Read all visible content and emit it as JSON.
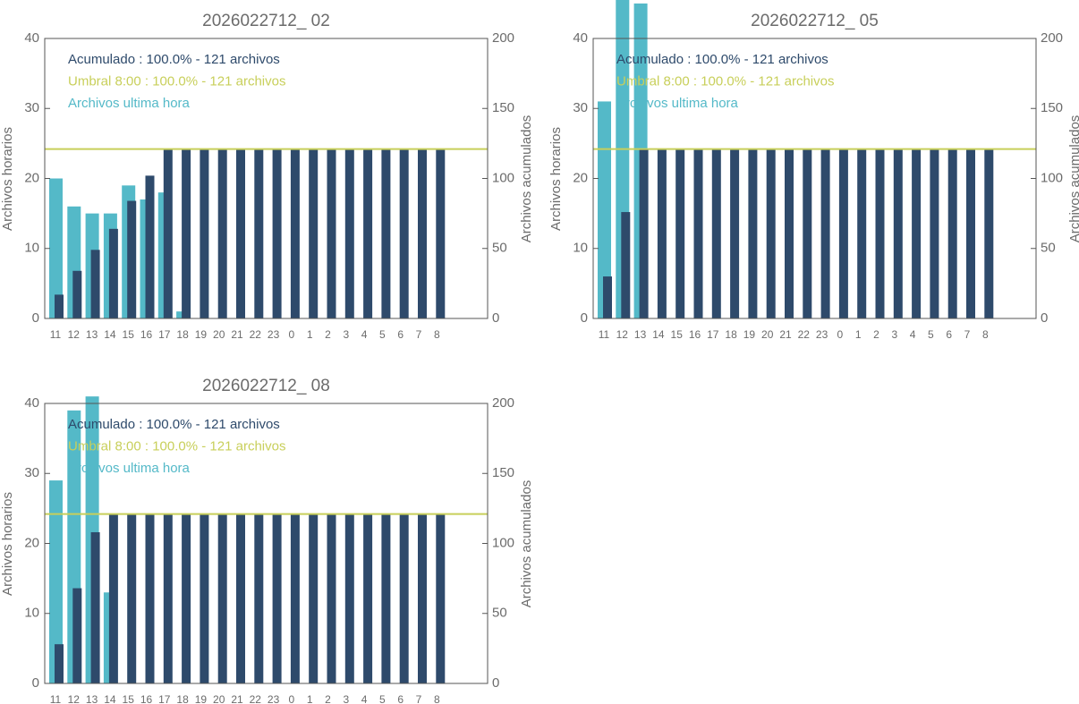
{
  "chart_data": [
    {
      "type": "bar",
      "title": "2026022712_ 02",
      "categories": [
        "11",
        "12",
        "13",
        "14",
        "15",
        "16",
        "17",
        "18",
        "19",
        "20",
        "21",
        "22",
        "23",
        "0",
        "1",
        "2",
        "3",
        "4",
        "5",
        "6",
        "7",
        "8"
      ],
      "series": [
        {
          "name": "Archivos ultima hora",
          "color": "#54b9c8",
          "values": [
            20,
            16,
            15,
            15,
            19,
            17,
            18,
            1,
            0,
            0,
            0,
            0,
            0,
            0,
            0,
            0,
            0,
            0,
            0,
            0,
            0,
            0
          ]
        },
        {
          "name": "Acumulado : 100.0% - 121 archivos",
          "color": "#2e4a6b",
          "axis": "y2",
          "values": [
            17,
            34,
            49,
            64,
            84,
            102,
            121,
            121,
            121,
            121,
            121,
            121,
            121,
            121,
            121,
            121,
            121,
            121,
            121,
            121,
            121,
            121
          ]
        }
      ],
      "threshold": {
        "name": "Umbral 8:00 : 100.0% - 121 archivos",
        "value": 121,
        "axis": "y2",
        "color": "#c8cf5a"
      },
      "ylabel": "Archivos horarios",
      "y2label": "Archivos acumulados",
      "ylim": [
        0,
        40
      ],
      "yticks": [
        0,
        10,
        20,
        30,
        40
      ],
      "y2lim": [
        0,
        200
      ],
      "y2ticks": [
        0,
        50,
        100,
        150,
        200
      ]
    },
    {
      "type": "bar",
      "title": "2026022712_ 05",
      "categories": [
        "11",
        "12",
        "13",
        "14",
        "15",
        "16",
        "17",
        "18",
        "19",
        "20",
        "21",
        "22",
        "23",
        "0",
        "1",
        "2",
        "3",
        "4",
        "5",
        "6",
        "7",
        "8"
      ],
      "series": [
        {
          "name": "Archivos ultima hora",
          "color": "#54b9c8",
          "values": [
            31,
            46,
            45,
            0,
            0,
            0,
            0,
            0,
            0,
            0,
            0,
            0,
            0,
            0,
            0,
            0,
            0,
            0,
            0,
            0,
            0,
            0
          ]
        },
        {
          "name": "Acumulado : 100.0% - 121 archivos",
          "color": "#2e4a6b",
          "axis": "y2",
          "values": [
            30,
            76,
            121,
            121,
            121,
            121,
            121,
            121,
            121,
            121,
            121,
            121,
            121,
            121,
            121,
            121,
            121,
            121,
            121,
            121,
            121,
            121
          ]
        }
      ],
      "threshold": {
        "name": "Umbral 8:00 : 100.0% - 121 archivos",
        "value": 121,
        "axis": "y2",
        "color": "#c8cf5a"
      },
      "ylabel": "Archivos horarios",
      "y2label": "Archivos acumulados",
      "ylim": [
        0,
        40
      ],
      "yticks": [
        0,
        10,
        20,
        30,
        40
      ],
      "y2lim": [
        0,
        200
      ],
      "y2ticks": [
        0,
        50,
        100,
        150,
        200
      ]
    },
    {
      "type": "bar",
      "title": "2026022712_ 08",
      "categories": [
        "11",
        "12",
        "13",
        "14",
        "15",
        "16",
        "17",
        "18",
        "19",
        "20",
        "21",
        "22",
        "23",
        "0",
        "1",
        "2",
        "3",
        "4",
        "5",
        "6",
        "7",
        "8"
      ],
      "series": [
        {
          "name": "Archivos ultima hora",
          "color": "#54b9c8",
          "values": [
            29,
            39,
            41,
            13,
            0,
            0,
            0,
            0,
            0,
            0,
            0,
            0,
            0,
            0,
            0,
            0,
            0,
            0,
            0,
            0,
            0,
            0
          ]
        },
        {
          "name": "Acumulado : 100.0% - 121 archivos",
          "color": "#2e4a6b",
          "axis": "y2",
          "values": [
            28,
            68,
            108,
            121,
            121,
            121,
            121,
            121,
            121,
            121,
            121,
            121,
            121,
            121,
            121,
            121,
            121,
            121,
            121,
            121,
            121,
            121
          ]
        }
      ],
      "threshold": {
        "name": "Umbral 8:00 : 100.0% - 121 archivos",
        "value": 121,
        "axis": "y2",
        "color": "#c8cf5a"
      },
      "ylabel": "Archivos horarios",
      "y2label": "Archivos acumulados",
      "ylim": [
        0,
        40
      ],
      "yticks": [
        0,
        10,
        20,
        30,
        40
      ],
      "y2lim": [
        0,
        200
      ],
      "y2ticks": [
        0,
        50,
        100,
        150,
        200
      ]
    }
  ]
}
